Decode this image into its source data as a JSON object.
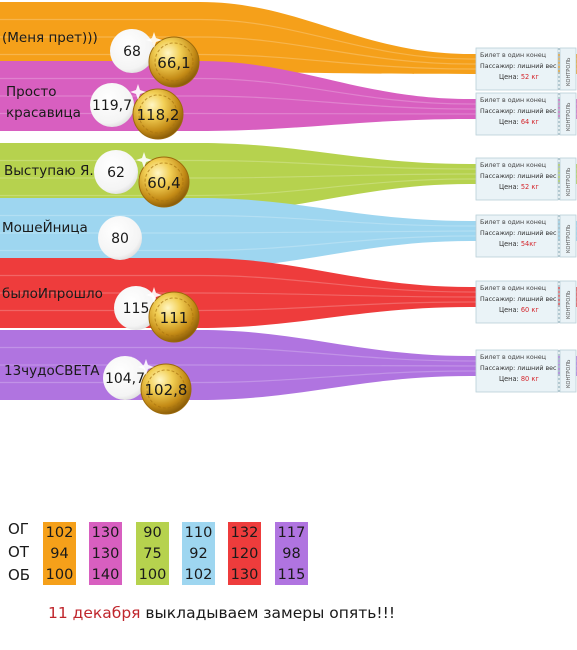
{
  "colors": {
    "orange": "#f5a01a",
    "magenta": "#d85fc0",
    "lime": "#b6d24e",
    "skyblue": "#9ed6f0",
    "red": "#ee3c3c",
    "violet": "#b074e0",
    "price_red": "#d4262c",
    "text_dark": "#1a1a1a"
  },
  "ticket": {
    "line1": "Билет в один конец",
    "line2": "Пассажир: лишний вес",
    "price_label": "Цена:",
    "stub": "КОНТРОЛЬ"
  },
  "participants": [
    {
      "name": "(Меня прет)))",
      "name_lines": [
        "(Меня прет)))"
      ],
      "white_value": "68",
      "gold_value": "66,1",
      "ticket_price": "52 кг",
      "color": "orange"
    },
    {
      "name": "Просто красавица",
      "name_lines": [
        "Просто",
        "красавица"
      ],
      "white_value": "119,7",
      "gold_value": "118,2",
      "ticket_price": "64 кг",
      "color": "magenta"
    },
    {
      "name": "Выступаю Я.",
      "name_lines": [
        "Выступаю Я."
      ],
      "white_value": "62",
      "gold_value": "60,4",
      "ticket_price": "52 кг",
      "color": "lime"
    },
    {
      "name": "МошеЙница",
      "name_lines": [
        "МошеЙница"
      ],
      "white_value": "80",
      "gold_value": "",
      "ticket_price": "54кг",
      "color": "skyblue"
    },
    {
      "name": "былоИпрошло",
      "name_lines": [
        "былоИпрошло"
      ],
      "white_value": "115",
      "gold_value": "111",
      "ticket_price": "60 кг",
      "color": "red"
    },
    {
      "name": "13чудоСВЕТА",
      "name_lines": [
        "13чудоСВЕТА"
      ],
      "white_value": "104,7",
      "gold_value": "102,8",
      "ticket_price": "80 кг",
      "color": "violet"
    }
  ],
  "measurements": {
    "row_labels": [
      "ОГ",
      "ОТ",
      "ОБ"
    ],
    "columns": [
      {
        "color": "orange",
        "values": [
          "102",
          "94",
          "100"
        ]
      },
      {
        "color": "magenta",
        "values": [
          "130",
          "130",
          "140"
        ]
      },
      {
        "color": "lime",
        "values": [
          "90",
          "75",
          "100"
        ]
      },
      {
        "color": "skyblue",
        "values": [
          "110",
          "92",
          "102"
        ]
      },
      {
        "color": "red",
        "values": [
          "132",
          "120",
          "130"
        ]
      },
      {
        "color": "violet",
        "values": [
          "117",
          "98",
          "115"
        ]
      }
    ]
  },
  "footer": {
    "date": "11 декабря",
    "text": " выкладываем замеры опять!!!"
  }
}
